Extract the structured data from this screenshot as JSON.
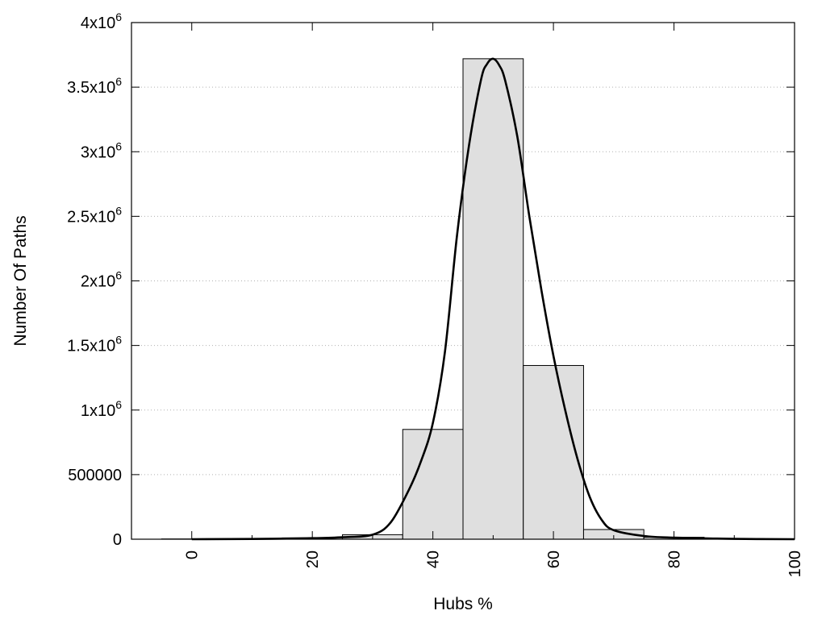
{
  "chart_data": {
    "type": "bar",
    "title": "",
    "xlabel": "Hubs %",
    "ylabel": "Number Of Paths",
    "xlim": [
      -10,
      100
    ],
    "ylim": [
      0,
      4000000
    ],
    "grid": {
      "horizontal": true,
      "style": "dotted"
    },
    "legend": "none",
    "x_ticks": [
      0,
      20,
      40,
      60,
      80,
      100
    ],
    "x_tick_labels": [
      "0",
      "20",
      "40",
      "60",
      "80",
      "100"
    ],
    "y_ticks": [
      0,
      500000,
      1000000,
      1500000,
      2000000,
      2500000,
      3000000,
      3500000,
      4000000
    ],
    "y_tick_labels": [
      {
        "text": "0",
        "base": "0",
        "sup": ""
      },
      {
        "text": "500000",
        "base": "500000",
        "sup": ""
      },
      {
        "text": "1x10^6",
        "base": "1x10",
        "sup": "6"
      },
      {
        "text": "1.5x10^6",
        "base": "1.5x10",
        "sup": "6"
      },
      {
        "text": "2x10^6",
        "base": "2x10",
        "sup": "6"
      },
      {
        "text": "2.5x10^6",
        "base": "2.5x10",
        "sup": "6"
      },
      {
        "text": "3x10^6",
        "base": "3x10",
        "sup": "6"
      },
      {
        "text": "3.5x10^6",
        "base": "3.5x10",
        "sup": "6"
      },
      {
        "text": "4x10^6",
        "base": "4x10",
        "sup": "6"
      }
    ],
    "bin_width": 10,
    "bins": [
      {
        "center": 0,
        "value": 2000
      },
      {
        "center": 10,
        "value": 3000
      },
      {
        "center": 20,
        "value": 10000
      },
      {
        "center": 30,
        "value": 35000
      },
      {
        "center": 40,
        "value": 850000
      },
      {
        "center": 50,
        "value": 3720000
      },
      {
        "center": 60,
        "value": 1345000
      },
      {
        "center": 70,
        "value": 75000
      },
      {
        "center": 80,
        "value": 15000
      },
      {
        "center": 90,
        "value": 4000
      }
    ],
    "fit_curve": {
      "x": [
        0,
        10,
        20,
        25,
        30,
        33,
        36,
        38,
        40,
        42,
        44,
        46,
        48,
        49,
        50,
        51,
        52,
        54,
        56,
        58,
        60,
        62,
        64,
        66,
        68,
        70,
        75,
        80,
        90,
        100
      ],
      "y": [
        0,
        2000,
        8000,
        15000,
        35000,
        130000,
        380000,
        600000,
        900000,
        1450000,
        2350000,
        3050000,
        3560000,
        3680000,
        3720000,
        3670000,
        3550000,
        3120000,
        2500000,
        1930000,
        1420000,
        990000,
        620000,
        330000,
        150000,
        70000,
        25000,
        12000,
        3000,
        0
      ]
    }
  },
  "colors": {
    "bar_fill": "#dfdfdf",
    "bar_stroke": "#000000",
    "curve": "#000000",
    "grid": "#b0b0b0"
  }
}
